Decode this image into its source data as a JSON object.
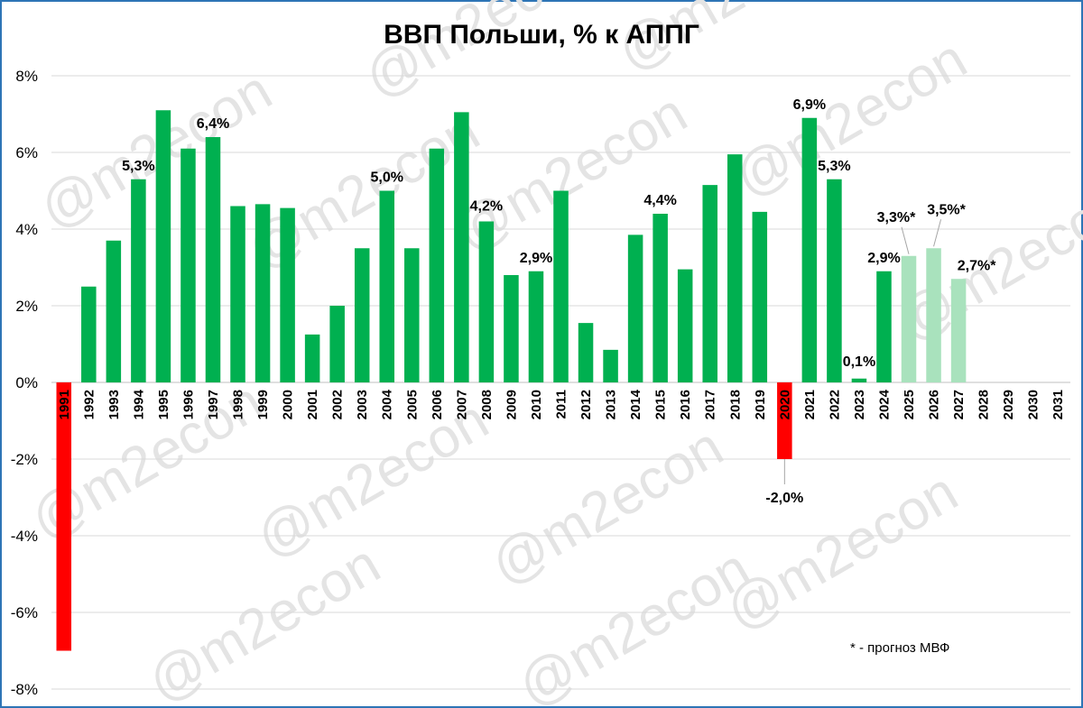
{
  "chart_data": {
    "type": "bar",
    "title": "ВВП Польши, % к АППГ",
    "ylim": [
      -8,
      8
    ],
    "yticks": [
      8,
      6,
      4,
      2,
      0,
      -2,
      -4,
      -6,
      -8
    ],
    "ytick_labels": [
      "8%",
      "6%",
      "4%",
      "2%",
      "0%",
      "-2%",
      "-4%",
      "-6%",
      "-8%"
    ],
    "grid": true,
    "categories": [
      "1991",
      "1992",
      "1993",
      "1994",
      "1995",
      "1996",
      "1997",
      "1998",
      "1999",
      "2000",
      "2001",
      "2002",
      "2003",
      "2004",
      "2005",
      "2006",
      "2007",
      "2008",
      "2009",
      "2010",
      "2011",
      "2012",
      "2013",
      "2014",
      "2015",
      "2016",
      "2017",
      "2018",
      "2019",
      "2020",
      "2021",
      "2022",
      "2023",
      "2024",
      "2025",
      "2026",
      "2027",
      "2028",
      "2029",
      "2030",
      "2031"
    ],
    "values": [
      -7.0,
      2.5,
      3.7,
      5.3,
      7.1,
      6.1,
      6.4,
      4.6,
      4.65,
      4.55,
      1.25,
      2.0,
      3.5,
      5.0,
      3.5,
      6.1,
      7.05,
      4.2,
      2.8,
      2.9,
      5.0,
      1.55,
      0.85,
      3.85,
      4.4,
      2.95,
      5.15,
      5.95,
      4.45,
      -2.0,
      6.9,
      5.3,
      0.1,
      2.9,
      3.3,
      3.5,
      2.7,
      null,
      null,
      null,
      null
    ],
    "bar_kind": [
      "negative",
      "actual",
      "actual",
      "actual",
      "actual",
      "actual",
      "actual",
      "actual",
      "actual",
      "actual",
      "actual",
      "actual",
      "actual",
      "actual",
      "actual",
      "actual",
      "actual",
      "actual",
      "actual",
      "actual",
      "actual",
      "actual",
      "actual",
      "actual",
      "actual",
      "actual",
      "actual",
      "actual",
      "actual",
      "negative",
      "actual",
      "actual",
      "actual",
      "actual",
      "forecast",
      "forecast",
      "forecast",
      "none",
      "none",
      "none",
      "none"
    ],
    "data_labels": [
      {
        "category": "1994",
        "text": "5,3%"
      },
      {
        "category": "1997",
        "text": "6,4%"
      },
      {
        "category": "2004",
        "text": "5,0%"
      },
      {
        "category": "2008",
        "text": "4,2%"
      },
      {
        "category": "2010",
        "text": "2,9%"
      },
      {
        "category": "2015",
        "text": "4,4%"
      },
      {
        "category": "2020",
        "text": "-2,0%"
      },
      {
        "category": "2021",
        "text": "6,9%"
      },
      {
        "category": "2022",
        "text": "5,3%"
      },
      {
        "category": "2023",
        "text": "0,1%"
      },
      {
        "category": "2024",
        "text": "2,9%"
      },
      {
        "category": "2025",
        "text": "3,3%*"
      },
      {
        "category": "2026",
        "text": "3,5%*"
      },
      {
        "category": "2027",
        "text": "2,7%*"
      }
    ],
    "colors": {
      "actual": "#00b050",
      "forecast": "#a9e2bd",
      "negative": "#ff0000",
      "grid": "#d9d9d9",
      "frame": "#2e75b6"
    },
    "note": "* - прогноз МВФ",
    "watermark": "@m2econ"
  }
}
